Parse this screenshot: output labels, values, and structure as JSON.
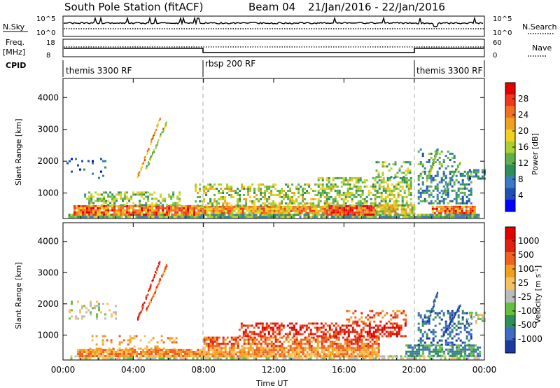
{
  "header": {
    "station": "South Pole Station (fitACF)",
    "beam": "Beam 04",
    "dates": "21/Jan/2016 - 22/Jan/2016"
  },
  "summary_panels": {
    "nsky": {
      "label": "N.Sky",
      "ticks_left": [
        "10^5",
        "10^0"
      ],
      "ticks_right": [
        "10^5",
        "10^0"
      ],
      "right_label": "N.Search"
    },
    "freq": {
      "label_top": "Freq.",
      "label_unit": "[MHz]",
      "ticks_left": [
        "18",
        "8"
      ],
      "ticks_right": [
        "60",
        "0"
      ],
      "right_label": "Nave"
    },
    "cpid": {
      "label": "CPID",
      "segments": [
        {
          "start_hour": 0,
          "end_hour": 8,
          "text": "themis 3300 RF"
        },
        {
          "start_hour": 8,
          "end_hour": 20,
          "text": "rbsp 200 RF"
        },
        {
          "start_hour": 20,
          "end_hour": 24,
          "text": "themis 3300 RF"
        }
      ]
    }
  },
  "chart_data": [
    {
      "type": "heatmap",
      "name": "power",
      "ylabel": "Slant Range [km]",
      "xlim": [
        0,
        24
      ],
      "ylim": [
        200,
        4600
      ],
      "yticks": [
        1000,
        2000,
        3000,
        4000
      ],
      "colorbar": {
        "label": "Power [dB]",
        "range": [
          0,
          32
        ],
        "ticks": [
          4,
          8,
          12,
          16,
          20,
          24,
          28
        ],
        "colors": [
          "#0000ff",
          "#1f4fb4",
          "#3a7ac8",
          "#2f8f5a",
          "#5fb04a",
          "#a8d030",
          "#f0d020",
          "#f0a020",
          "#f07020",
          "#f03818",
          "#e00000"
        ]
      },
      "regions": [
        {
          "t0": 0.3,
          "t1": 23.7,
          "r0": 250,
          "r1": 350,
          "value": 12,
          "density": 0.95
        },
        {
          "t0": 0.6,
          "t1": 7.8,
          "r0": 350,
          "r1": 620,
          "value": 25,
          "density": 0.92
        },
        {
          "t0": 7.8,
          "t1": 15.0,
          "r0": 350,
          "r1": 600,
          "value": 22,
          "density": 0.92
        },
        {
          "t0": 15.0,
          "t1": 17.8,
          "r0": 350,
          "r1": 620,
          "value": 27,
          "density": 0.95
        },
        {
          "t0": 17.8,
          "t1": 20.0,
          "r0": 350,
          "r1": 650,
          "value": 18,
          "density": 0.85
        },
        {
          "t0": 21.0,
          "t1": 23.5,
          "r0": 350,
          "r1": 600,
          "value": 24,
          "density": 0.9
        },
        {
          "t0": 1.2,
          "t1": 6.6,
          "r0": 620,
          "r1": 1050,
          "value": 14,
          "density": 0.5
        },
        {
          "t0": 7.5,
          "t1": 14.5,
          "r0": 620,
          "r1": 1300,
          "value": 16,
          "density": 0.45
        },
        {
          "t0": 14.5,
          "t1": 19.8,
          "r0": 620,
          "r1": 1500,
          "value": 15,
          "density": 0.55
        },
        {
          "t0": 17.8,
          "t1": 19.8,
          "r0": 1500,
          "r1": 2000,
          "value": 14,
          "density": 0.35
        },
        {
          "t0": 20.2,
          "t1": 23.2,
          "r0": 700,
          "r1": 1700,
          "value": 9,
          "density": 0.4
        },
        {
          "t0": 23.0,
          "t1": 24.0,
          "r0": 1450,
          "r1": 1750,
          "value": 8,
          "density": 0.6
        },
        {
          "t0": 0.2,
          "t1": 2.4,
          "r0": 1500,
          "r1": 2100,
          "value": 6,
          "density": 0.15
        },
        {
          "t0": 20.2,
          "t1": 22.3,
          "r0": 1800,
          "r1": 2400,
          "value": 10,
          "density": 0.2
        }
      ],
      "streaks": [
        {
          "t0": 4.2,
          "r0": 1500,
          "t1": 5.5,
          "r1": 3400,
          "value": 22,
          "width_h": 0.08
        },
        {
          "t0": 4.7,
          "r0": 1800,
          "t1": 5.9,
          "r1": 3300,
          "value": 15,
          "width_h": 0.08
        },
        {
          "t0": 20.7,
          "r0": 1400,
          "t1": 21.3,
          "r1": 2400,
          "value": 14,
          "width_h": 0.1
        },
        {
          "t0": 21.6,
          "r0": 1000,
          "t1": 22.6,
          "r1": 2000,
          "value": 12,
          "width_h": 0.08
        }
      ]
    },
    {
      "type": "heatmap",
      "name": "velocity",
      "ylabel": "Slant Range [km]",
      "xlabel": "Time UT",
      "xlim": [
        0,
        24
      ],
      "ylim": [
        200,
        4600
      ],
      "yticks": [
        1000,
        2000,
        3000,
        4000
      ],
      "xticks": [
        "00:00",
        "04:00",
        "08:00",
        "12:00",
        "16:00",
        "20:00",
        "00:00"
      ],
      "colorbar": {
        "label": "Velocity [m s^-1]",
        "ticks": [
          "1000",
          "500",
          "100",
          "25",
          "-25",
          "-100",
          "-500",
          "-1000"
        ],
        "colors": [
          "#1a3aa0",
          "#3e6cc4",
          "#2f8f5a",
          "#66c040",
          "#bbbbbb",
          "#f6c060",
          "#f0a020",
          "#f06020",
          "#e02010",
          "#e00000"
        ]
      },
      "regions": [
        {
          "t0": 0.3,
          "t1": 23.7,
          "r0": 250,
          "r1": 350,
          "value": 4,
          "density": 0.6
        },
        {
          "t0": 0.8,
          "t1": 8.0,
          "r0": 350,
          "r1": 560,
          "value": 6,
          "density": 0.9
        },
        {
          "t0": 8.0,
          "t1": 18.0,
          "r0": 350,
          "r1": 620,
          "value": 6,
          "density": 0.9
        },
        {
          "t0": 8.0,
          "t1": 18.0,
          "r0": 620,
          "r1": 950,
          "value": 7,
          "density": 0.65
        },
        {
          "t0": 10.0,
          "t1": 19.5,
          "r0": 950,
          "r1": 1400,
          "value": 8,
          "density": 0.5
        },
        {
          "t0": 16.0,
          "t1": 19.5,
          "r0": 1400,
          "r1": 1800,
          "value": 7,
          "density": 0.35
        },
        {
          "t0": 19.5,
          "t1": 23.8,
          "r0": 350,
          "r1": 700,
          "value": 2,
          "density": 0.7
        },
        {
          "t0": 20.2,
          "t1": 23.2,
          "r0": 700,
          "r1": 1800,
          "value": 1,
          "density": 0.35
        },
        {
          "t0": 0.2,
          "t1": 3.0,
          "r0": 1500,
          "r1": 2100,
          "value": 4,
          "density": 0.2
        },
        {
          "t0": 23.0,
          "t1": 24.0,
          "r0": 1400,
          "r1": 1750,
          "value": 4,
          "density": 0.5
        },
        {
          "t0": 1.5,
          "t1": 6.5,
          "r0": 560,
          "r1": 1000,
          "value": 6,
          "density": 0.25
        }
      ],
      "streaks": [
        {
          "t0": 4.2,
          "r0": 1500,
          "t1": 5.5,
          "r1": 3400,
          "value": 8,
          "width_h": 0.08
        },
        {
          "t0": 4.7,
          "r0": 1800,
          "t1": 5.9,
          "r1": 3300,
          "value": 7,
          "width_h": 0.07
        },
        {
          "t0": 20.7,
          "r0": 1400,
          "t1": 21.3,
          "r1": 2400,
          "value": 1,
          "width_h": 0.1
        },
        {
          "t0": 21.6,
          "r0": 1000,
          "t1": 22.6,
          "r1": 2000,
          "value": 0,
          "width_h": 0.08
        }
      ]
    }
  ]
}
